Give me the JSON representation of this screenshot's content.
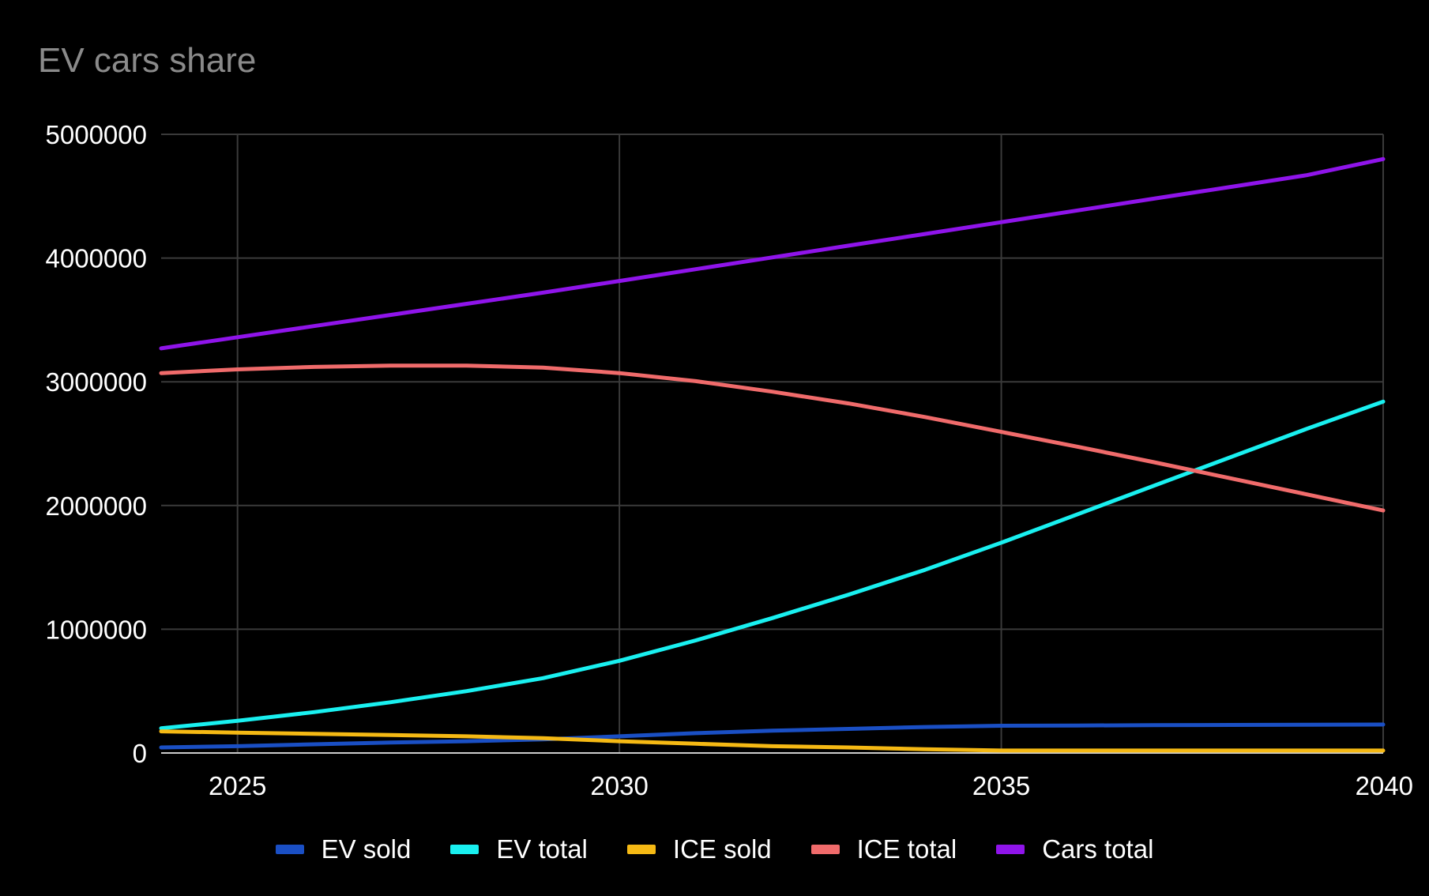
{
  "chart_data": {
    "type": "line",
    "title": "EV cars share",
    "xlabel": "",
    "ylabel": "",
    "xlim": [
      2024,
      2040
    ],
    "ylim": [
      0,
      5000000
    ],
    "x_ticks": [
      "2025",
      "2030",
      "2035",
      "2040"
    ],
    "y_ticks": [
      "0",
      "1000000",
      "2000000",
      "3000000",
      "4000000",
      "5000000"
    ],
    "grid": true,
    "legend_position": "bottom",
    "x": [
      2024,
      2025,
      2026,
      2027,
      2028,
      2029,
      2030,
      2031,
      2032,
      2033,
      2034,
      2035,
      2036,
      2037,
      2038,
      2039,
      2040
    ],
    "series": [
      {
        "name": "EV sold",
        "color": "#1a4fc4",
        "values": [
          45000,
          55000,
          70000,
          85000,
          95000,
          110000,
          135000,
          160000,
          180000,
          195000,
          210000,
          220000,
          222000,
          225000,
          227000,
          228000,
          230000
        ]
      },
      {
        "name": "EV total",
        "color": "#19f0f0",
        "values": [
          200000,
          260000,
          330000,
          410000,
          500000,
          605000,
          745000,
          910000,
          1090000,
          1280000,
          1480000,
          1700000,
          1930000,
          2160000,
          2390000,
          2620000,
          2840000
        ]
      },
      {
        "name": "ICE sold",
        "color": "#f5b914",
        "values": [
          175000,
          165000,
          155000,
          145000,
          135000,
          120000,
          95000,
          75000,
          55000,
          45000,
          30000,
          20000,
          20000,
          20000,
          20000,
          20000,
          20000
        ]
      },
      {
        "name": "ICE total",
        "color": "#f06b6b",
        "values": [
          3070000,
          3100000,
          3120000,
          3130000,
          3130000,
          3115000,
          3070000,
          3005000,
          2920000,
          2825000,
          2715000,
          2595000,
          2475000,
          2350000,
          2220000,
          2090000,
          1960000
        ]
      },
      {
        "name": "Cars total",
        "color": "#8f14ea",
        "values": [
          3270000,
          3360000,
          3450000,
          3540000,
          3630000,
          3720000,
          3815000,
          3910000,
          4005000,
          4100000,
          4195000,
          4290000,
          4385000,
          4480000,
          4575000,
          4670000,
          4800000
        ]
      }
    ]
  },
  "style": {
    "background": "#000000",
    "grid_color": "#3a3a3a",
    "baseline_color": "#cccccc",
    "tick_text_color": "#ffffff",
    "title_color": "#8a8a8a"
  }
}
